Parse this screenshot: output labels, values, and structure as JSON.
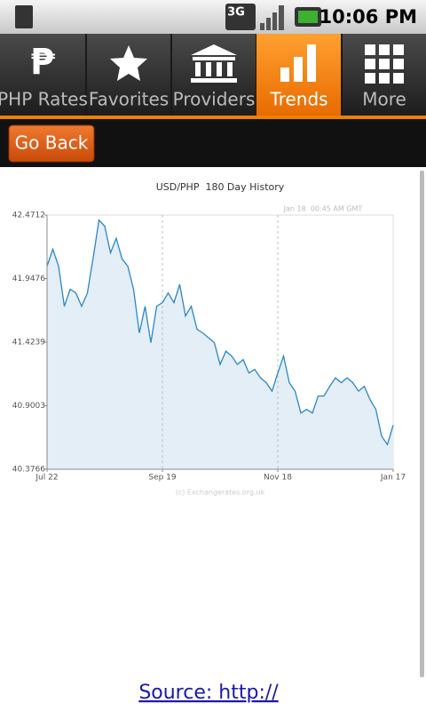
{
  "status_bar": {
    "network": "3G",
    "time": "10:06 PM"
  },
  "tabs": [
    {
      "icon": "₱",
      "label": "PHP Rates"
    },
    {
      "label": "Favorites"
    },
    {
      "label": "Providers"
    },
    {
      "label": "Trends"
    },
    {
      "label": "More"
    }
  ],
  "toolbar": {
    "button": "Go Back"
  },
  "chart_data": {
    "type": "line",
    "title": "USD/PHP  180 Day History",
    "annotation": "Jan 18  00:45 AM GMT",
    "credit": "(c) Exchangerates.org.uk",
    "color": "#2a87c8",
    "fill": "#e4eef7",
    "grid": true,
    "categories": [
      "Jul 22",
      null,
      null,
      null,
      null,
      null,
      null,
      null,
      null,
      null,
      null,
      null,
      null,
      null,
      null,
      null,
      null,
      null,
      null,
      null,
      "Sep 19",
      null,
      null,
      null,
      null,
      null,
      null,
      null,
      null,
      null,
      null,
      null,
      null,
      null,
      null,
      null,
      null,
      null,
      null,
      null,
      "Nov 18",
      null,
      null,
      null,
      null,
      null,
      null,
      null,
      null,
      null,
      null,
      null,
      null,
      null,
      null,
      null,
      null,
      null,
      null,
      null,
      "Jan 17"
    ],
    "values": [
      42.05,
      42.19,
      42.05,
      41.72,
      41.86,
      41.83,
      41.72,
      41.83,
      42.12,
      42.43,
      42.38,
      42.16,
      42.28,
      42.11,
      42.05,
      41.86,
      41.5,
      41.72,
      41.42,
      41.72,
      41.75,
      41.83,
      41.75,
      41.9,
      41.64,
      41.72,
      41.53,
      41.5,
      41.46,
      41.42,
      41.24,
      41.35,
      41.31,
      41.24,
      41.28,
      41.17,
      41.2,
      41.13,
      41.09,
      41.02,
      41.17,
      41.31,
      41.09,
      41.02,
      40.84,
      40.87,
      40.84,
      40.98,
      40.98,
      41.06,
      41.13,
      41.09,
      41.13,
      41.09,
      41.02,
      41.06,
      40.95,
      40.87,
      40.65,
      40.58,
      40.74
    ],
    "ylim": [
      40.3766,
      42.4712
    ],
    "yticks": [
      40.3766,
      40.9003,
      41.4239,
      41.9476,
      42.4712
    ]
  },
  "footer": {
    "link": "Source: http://"
  }
}
